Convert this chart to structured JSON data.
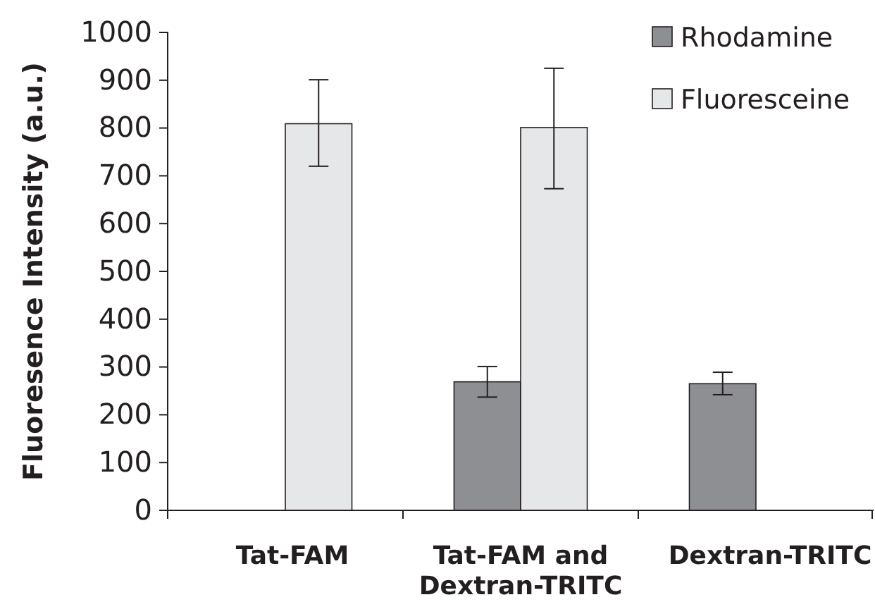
{
  "chart_data": {
    "type": "bar",
    "ylabel": "Fluoresence Intensity (a.u.)",
    "categories": [
      "Tat-FAM",
      "Tat-FAM and Dextran-TRITC",
      "Dextran-TRITC"
    ],
    "series": [
      {
        "name": "Rhodamine",
        "color": "#8e8f93",
        "values": [
          null,
          269,
          265
        ],
        "errors": [
          null,
          [
            237,
            301
          ],
          [
            242,
            289
          ]
        ]
      },
      {
        "name": "Fluoresceine",
        "color": "#e6e7e9",
        "values": [
          809,
          801,
          null
        ],
        "errors": [
          [
            720,
            901
          ],
          [
            673,
            925
          ],
          null
        ]
      }
    ],
    "ylim": [
      0,
      1000
    ],
    "yticks": [
      0,
      100,
      200,
      300,
      400,
      500,
      600,
      700,
      800,
      900,
      1000
    ],
    "grid": false,
    "legend": "top right"
  }
}
